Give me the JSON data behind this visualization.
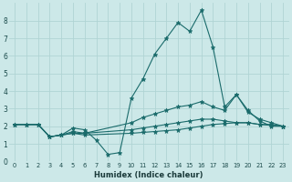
{
  "xlabel": "Humidex (Indice chaleur)",
  "bg_color": "#cce8e8",
  "line_color": "#1a6b6b",
  "grid_color": "#b0d4d4",
  "xlim": [
    -0.5,
    23.5
  ],
  "ylim": [
    0,
    9
  ],
  "xticks": [
    0,
    1,
    2,
    3,
    4,
    5,
    6,
    7,
    8,
    9,
    10,
    11,
    12,
    13,
    14,
    15,
    16,
    17,
    18,
    19,
    20,
    21,
    22,
    23
  ],
  "yticks": [
    0,
    1,
    2,
    3,
    4,
    5,
    6,
    7,
    8
  ],
  "series": [
    {
      "x": [
        0,
        1,
        2,
        3,
        4,
        5,
        6,
        7,
        8,
        9,
        10,
        11,
        12,
        13,
        14,
        15,
        16,
        17,
        18,
        19,
        20,
        21,
        22,
        23
      ],
      "y": [
        2.1,
        2.1,
        2.1,
        1.4,
        1.5,
        1.9,
        1.8,
        1.2,
        0.4,
        0.5,
        3.6,
        4.7,
        6.1,
        7.0,
        7.9,
        7.4,
        8.6,
        6.5,
        3.1,
        3.8,
        2.9,
        2.3,
        2.0,
        2.0
      ]
    },
    {
      "x": [
        0,
        1,
        2,
        3,
        4,
        5,
        6,
        10,
        11,
        12,
        13,
        14,
        15,
        16,
        17,
        18,
        19,
        20,
        21,
        22,
        23
      ],
      "y": [
        2.1,
        2.1,
        2.1,
        1.4,
        1.5,
        1.7,
        1.6,
        2.2,
        2.5,
        2.7,
        2.9,
        3.1,
        3.2,
        3.4,
        3.1,
        2.9,
        3.8,
        2.8,
        2.4,
        2.2,
        2.0
      ]
    },
    {
      "x": [
        0,
        1,
        2,
        3,
        4,
        5,
        6,
        10,
        11,
        12,
        13,
        14,
        15,
        16,
        17,
        18,
        19,
        20,
        21,
        22,
        23
      ],
      "y": [
        2.1,
        2.1,
        2.1,
        1.4,
        1.5,
        1.6,
        1.6,
        1.8,
        1.9,
        2.0,
        2.1,
        2.2,
        2.3,
        2.4,
        2.4,
        2.3,
        2.2,
        2.2,
        2.1,
        2.1,
        2.0
      ]
    },
    {
      "x": [
        0,
        1,
        2,
        3,
        4,
        5,
        6,
        10,
        11,
        12,
        13,
        14,
        15,
        16,
        17,
        18,
        19,
        20,
        21,
        22,
        23
      ],
      "y": [
        2.1,
        2.1,
        2.1,
        1.4,
        1.5,
        1.6,
        1.5,
        1.6,
        1.65,
        1.7,
        1.75,
        1.8,
        1.9,
        2.0,
        2.1,
        2.15,
        2.2,
        2.2,
        2.1,
        2.05,
        2.0
      ]
    }
  ]
}
